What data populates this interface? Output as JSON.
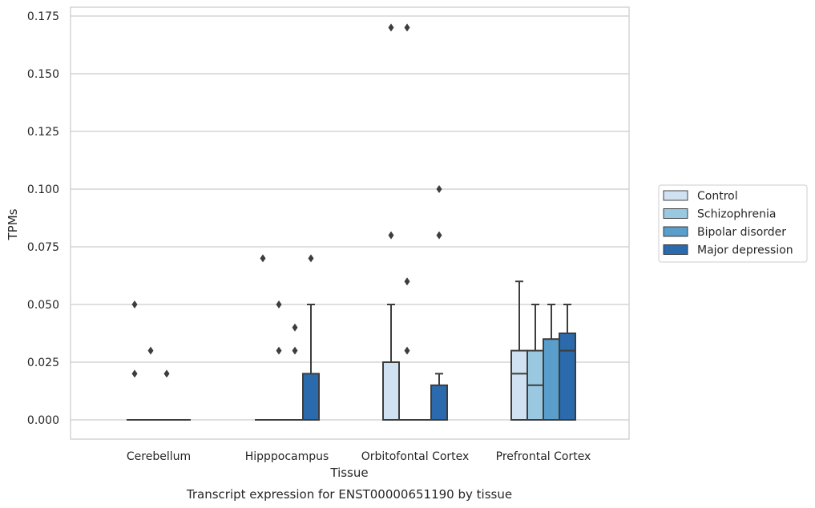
{
  "caption": "Transcript expression for ENST00000651190 by tissue",
  "chart_data": {
    "type": "box",
    "xlabel": "Tissue",
    "ylabel": "TPMs",
    "ylim": [
      -0.008,
      0.179
    ],
    "yticks": [
      "0.000",
      "0.025",
      "0.050",
      "0.075",
      "0.100",
      "0.125",
      "0.150",
      "0.175"
    ],
    "ytick_values": [
      0,
      0.025,
      0.05,
      0.075,
      0.1,
      0.125,
      0.15,
      0.175
    ],
    "grid": true,
    "legend_position": "right",
    "categories": [
      "Cerebellum",
      "Hipppocampus",
      "Orbitofontal Cortex",
      "Prefrontal Cortex"
    ],
    "series": [
      {
        "name": "Control",
        "color": "#d0e1f2",
        "boxes": [
          {
            "q1": 0,
            "median": 0,
            "q3": 0,
            "whislo": 0,
            "whishi": 0,
            "fliers": [
              0.05,
              0.02
            ]
          },
          {
            "q1": 0,
            "median": 0,
            "q3": 0,
            "whislo": 0,
            "whishi": 0,
            "fliers": [
              0.07
            ]
          },
          {
            "q1": 0,
            "median": 0,
            "q3": 0.025,
            "whislo": 0,
            "whishi": 0.05,
            "fliers": [
              0.17,
              0.08
            ]
          },
          {
            "q1": 0,
            "median": 0.02,
            "q3": 0.03,
            "whislo": 0,
            "whishi": 0.06,
            "fliers": []
          }
        ]
      },
      {
        "name": "Schizophrenia",
        "color": "#9ac8e0",
        "boxes": [
          {
            "q1": 0,
            "median": 0,
            "q3": 0,
            "whislo": 0,
            "whishi": 0,
            "fliers": [
              0.03
            ]
          },
          {
            "q1": 0,
            "median": 0,
            "q3": 0,
            "whislo": 0,
            "whishi": 0,
            "fliers": [
              0.05,
              0.03
            ]
          },
          {
            "q1": 0,
            "median": 0,
            "q3": 0,
            "whislo": 0,
            "whishi": 0,
            "fliers": [
              0.17,
              0.06,
              0.03
            ]
          },
          {
            "q1": 0,
            "median": 0.015,
            "q3": 0.03,
            "whislo": 0,
            "whishi": 0.05,
            "fliers": []
          }
        ]
      },
      {
        "name": "Bipolar disorder",
        "color": "#5a9ecc",
        "boxes": [
          {
            "q1": 0,
            "median": 0,
            "q3": 0,
            "whislo": 0,
            "whishi": 0,
            "fliers": [
              0.02
            ]
          },
          {
            "q1": 0,
            "median": 0,
            "q3": 0,
            "whislo": 0,
            "whishi": 0,
            "fliers": [
              0.04,
              0.03
            ]
          },
          {
            "q1": 0,
            "median": 0,
            "q3": 0,
            "whislo": 0,
            "whishi": 0,
            "fliers": []
          },
          {
            "q1": 0,
            "median": 0,
            "q3": 0.035,
            "whislo": 0,
            "whishi": 0.05,
            "fliers": []
          }
        ]
      },
      {
        "name": "Major depression",
        "color": "#2a6aad",
        "boxes": [
          {
            "q1": 0,
            "median": 0,
            "q3": 0,
            "whislo": 0,
            "whishi": 0,
            "fliers": []
          },
          {
            "q1": 0,
            "median": 0,
            "q3": 0.02,
            "whislo": 0,
            "whishi": 0.05,
            "fliers": [
              0.07
            ]
          },
          {
            "q1": 0,
            "median": 0,
            "q3": 0.015,
            "whislo": 0,
            "whishi": 0.02,
            "fliers": [
              0.1,
              0.08
            ]
          },
          {
            "q1": 0,
            "median": 0.03,
            "q3": 0.0375,
            "whislo": 0,
            "whishi": 0.05,
            "fliers": []
          }
        ]
      }
    ]
  }
}
